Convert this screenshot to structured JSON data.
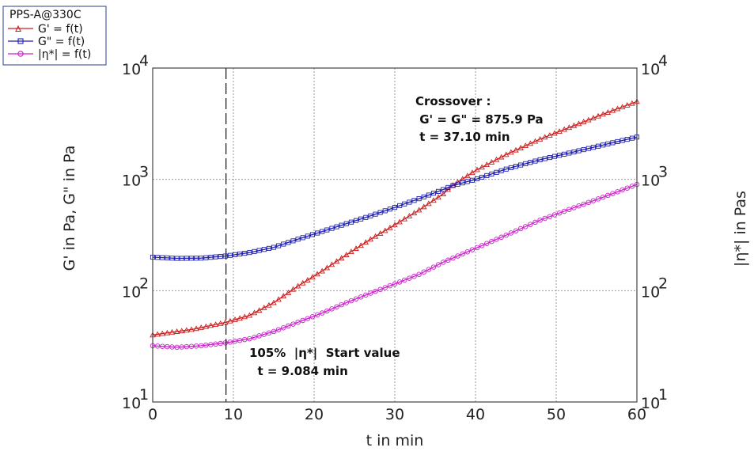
{
  "chart_data": {
    "type": "line",
    "legend": {
      "title": "PPS-A@330C",
      "placement": "top-left",
      "entries": [
        "G' = f(t)",
        "G\" = f(t)",
        "|η*| = f(t)"
      ]
    },
    "xlabel": "t in min",
    "ylabel_left": "G' in Pa, G\" in Pa",
    "ylabel_right": "|η*| in Pas",
    "xlim": [
      0,
      60
    ],
    "ylim_left": [
      10,
      10000
    ],
    "ylim_right": [
      10,
      10000
    ],
    "yscale": "log",
    "grid": true,
    "x_ticks": [
      "0",
      "10",
      "20",
      "30",
      "40",
      "50",
      "60"
    ],
    "y_ticks": [
      {
        "base": "10",
        "exp": "1"
      },
      {
        "base": "10",
        "exp": "2"
      },
      {
        "base": "10",
        "exp": "3"
      },
      {
        "base": "10",
        "exp": "4"
      }
    ],
    "series": [
      {
        "name": "G' = f(t)",
        "color": "#cc1f1f",
        "marker": "triangle",
        "axis": "left",
        "x": [
          0,
          5,
          9.084,
          12,
          15,
          18,
          21,
          24,
          27,
          30,
          33,
          36,
          37.1,
          40,
          44,
          48,
          52,
          56,
          60
        ],
        "y": [
          40,
          45,
          52,
          60,
          78,
          110,
          150,
          210,
          290,
          390,
          530,
          740,
          875.9,
          1200,
          1700,
          2300,
          3000,
          3900,
          5000
        ]
      },
      {
        "name": "G\" = f(t)",
        "color": "#1f1fb0",
        "marker": "square",
        "axis": "left",
        "x": [
          0,
          3,
          6,
          9.084,
          12,
          15,
          18,
          21,
          24,
          27,
          30,
          33,
          36,
          37.1,
          40,
          44,
          48,
          52,
          56,
          60
        ],
        "y": [
          200,
          195,
          196,
          205,
          220,
          245,
          290,
          340,
          400,
          470,
          560,
          670,
          810,
          875.9,
          1000,
          1250,
          1500,
          1750,
          2050,
          2400
        ]
      },
      {
        "name": "|η*| = f(t)",
        "color": "#cc22cc",
        "marker": "circle",
        "axis": "right",
        "x": [
          0,
          3,
          6,
          9.084,
          12,
          15,
          18,
          21,
          24,
          27,
          30,
          33,
          36,
          40,
          44,
          48,
          52,
          56,
          60
        ],
        "y": [
          32,
          31,
          32,
          34,
          37,
          43,
          52,
          63,
          78,
          95,
          115,
          140,
          180,
          240,
          320,
          430,
          550,
          700,
          900
        ]
      }
    ],
    "reference_line": {
      "x": 9.084,
      "style": "dashed"
    },
    "annotations": [
      {
        "lines": [
          "Crossover :",
          " G' = G\" = 875.9 Pa",
          " t = 37.10 min"
        ]
      },
      {
        "lines": [
          "105%  |η*|  Start value",
          "  t = 9.084 min"
        ]
      }
    ]
  }
}
